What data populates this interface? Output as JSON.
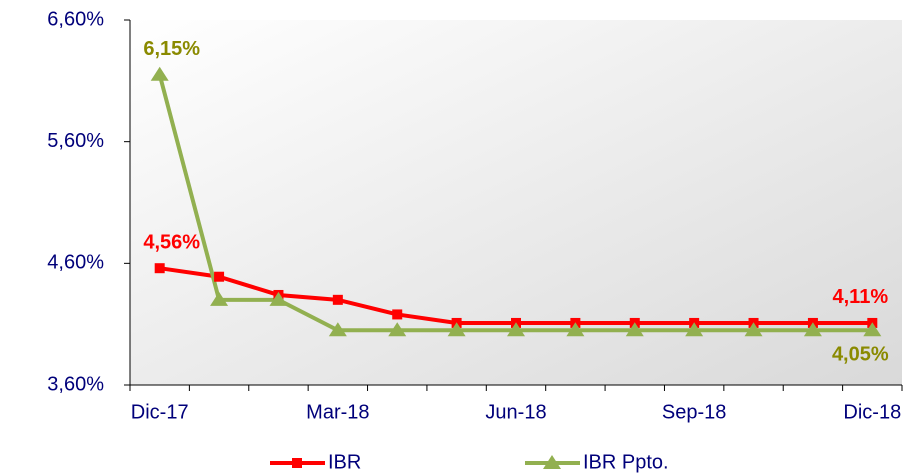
{
  "chart_data": {
    "type": "line",
    "categories": [
      "Dic-17",
      null,
      null,
      "Mar-18",
      null,
      null,
      "Jun-18",
      null,
      null,
      "Sep-18",
      null,
      null,
      "Dic-18"
    ],
    "series": [
      {
        "name": "IBR",
        "color": "#ff0000",
        "marker": "square",
        "values": [
          4.56,
          4.49,
          4.34,
          4.3,
          4.18,
          4.11,
          4.11,
          4.11,
          4.11,
          4.11,
          4.11,
          4.11,
          4.11
        ],
        "value_labels": [
          "4,56%",
          null,
          null,
          null,
          null,
          null,
          null,
          null,
          null,
          null,
          null,
          null,
          "4,11%"
        ]
      },
      {
        "name": "IBR Ppto.",
        "color": "#92b050",
        "marker": "triangle",
        "values": [
          6.15,
          4.3,
          4.3,
          4.05,
          4.05,
          4.05,
          4.05,
          4.05,
          4.05,
          4.05,
          4.05,
          4.05,
          4.05
        ],
        "value_labels": [
          "6,15%",
          null,
          null,
          null,
          null,
          null,
          null,
          null,
          null,
          null,
          null,
          null,
          "4,05%"
        ]
      }
    ],
    "ylim": [
      3.6,
      6.6
    ],
    "yticks": [
      {
        "value": 3.6,
        "label": "3,60%"
      },
      {
        "value": 4.6,
        "label": "4,60%"
      },
      {
        "value": 5.6,
        "label": "5,60%"
      },
      {
        "value": 6.6,
        "label": "6,60%"
      }
    ],
    "legend": "bottom"
  }
}
